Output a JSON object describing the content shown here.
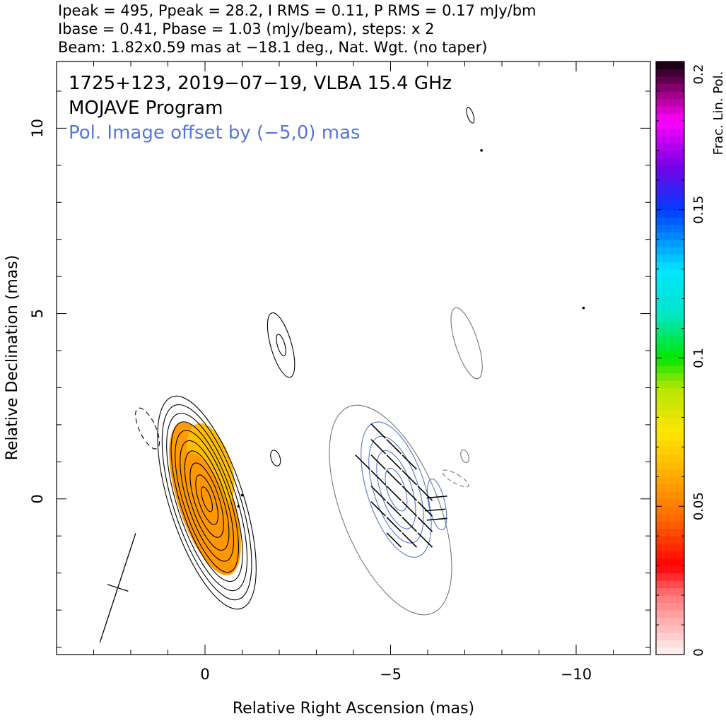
{
  "header": {
    "line1": "Ipeak = 495, Ppeak = 28.2, I RMS = 0.11, P RMS = 0.17 mJy/bm",
    "line2": "Ibase = 0.41, Pbase = 1.03 (mJy/beam), steps: x 2",
    "line3": "Beam: 1.82x0.59 mas at −18.1 deg., Nat. Wgt. (no taper)"
  },
  "chart_data": {
    "type": "contour",
    "source_title": "1725+123, 2019−07−19, VLBA 15.4 GHz",
    "program": "MOJAVE Program",
    "offset_note": "Pol. Image offset by (−5,0) mas",
    "xlabel": "Relative Right Ascension (mas)",
    "ylabel": "Relative Declination (mas)",
    "xlim": [
      4,
      -12
    ],
    "ylim": [
      -4.2,
      11.8
    ],
    "x_ticks": [
      {
        "value": 0,
        "label": "0"
      },
      {
        "value": -5,
        "label": "−5"
      },
      {
        "value": -10,
        "label": "−10"
      }
    ],
    "y_ticks": [
      {
        "value": 0,
        "label": "0"
      },
      {
        "value": 5,
        "label": "5"
      },
      {
        "value": 10,
        "label": "10"
      }
    ],
    "colorbar": {
      "label": "Frac. Lin. Pol.",
      "range": [
        0,
        0.2
      ],
      "ticks": [
        {
          "value": 0,
          "label": "0"
        },
        {
          "value": 0.05,
          "label": "0.05"
        },
        {
          "value": 0.1,
          "label": "0.1"
        },
        {
          "value": 0.15,
          "label": "0.15"
        },
        {
          "value": 0.2,
          "label": "0.2"
        }
      ]
    },
    "stokes_i": {
      "center": [
        0,
        0
      ],
      "position_angle_deg": -18,
      "contours": [
        {
          "semi_major": 3.0,
          "semi_minor": 1.0
        },
        {
          "semi_major": 2.75,
          "semi_minor": 0.9
        },
        {
          "semi_major": 2.5,
          "semi_minor": 0.8
        },
        {
          "semi_major": 2.25,
          "semi_minor": 0.7
        },
        {
          "semi_major": 2.0,
          "semi_minor": 0.62
        },
        {
          "semi_major": 1.7,
          "semi_minor": 0.52
        },
        {
          "semi_major": 1.4,
          "semi_minor": 0.43
        },
        {
          "semi_major": 1.05,
          "semi_minor": 0.33
        },
        {
          "semi_major": 0.7,
          "semi_minor": 0.22
        },
        {
          "semi_major": 0.35,
          "semi_minor": 0.11
        }
      ],
      "fracpol_fill": {
        "semi_major": 2.15,
        "semi_minor": 0.74,
        "fracpol": 0.055
      },
      "jet_component": {
        "center": [
          -2.05,
          4.15
        ],
        "position_angle_deg": -16,
        "contours": [
          {
            "semi_major": 0.9,
            "semi_minor": 0.28
          },
          {
            "semi_major": 0.3,
            "semi_minor": 0.1
          }
        ]
      },
      "negative_contour": {
        "center": [
          1.55,
          1.9
        ],
        "position_angle_deg": -25,
        "semi_major": 0.6,
        "semi_minor": 0.22
      },
      "small_islands": [
        {
          "center": [
            -1.9,
            1.1
          ],
          "semi_major": 0.22,
          "semi_minor": 0.12
        },
        {
          "center": [
            -7.15,
            10.35
          ],
          "semi_major": 0.22,
          "semi_minor": 0.08
        }
      ],
      "dots": [
        [
          -0.9,
          -0.2
        ],
        [
          -1.0,
          0.1
        ],
        [
          -7.45,
          9.4
        ],
        [
          -10.2,
          5.15
        ]
      ]
    },
    "polarization_image": {
      "offset": [
        -5,
        0
      ],
      "i_outline": {
        "center": [
          -5,
          -0.3
        ],
        "position_angle_deg": -22,
        "semi_major": 3.0,
        "semi_minor": 1.3
      },
      "i_outline_jet": {
        "center": [
          -7.05,
          4.2
        ],
        "position_angle_deg": -18,
        "semi_major": 1.0,
        "semi_minor": 0.3
      },
      "p_contours": [
        {
          "center": [
            -5.15,
            0.25
          ],
          "position_angle_deg": -18,
          "semi_major": 1.9,
          "semi_minor": 0.78
        },
        {
          "center": [
            -5.15,
            0.25
          ],
          "position_angle_deg": -18,
          "semi_major": 1.5,
          "semi_minor": 0.6
        },
        {
          "center": [
            -5.15,
            0.25
          ],
          "position_angle_deg": -18,
          "semi_major": 1.1,
          "semi_minor": 0.42
        },
        {
          "center": [
            -5.15,
            0.25
          ],
          "position_angle_deg": -18,
          "semi_major": 0.6,
          "semi_minor": 0.24
        },
        {
          "center": [
            -6.25,
            -0.15
          ],
          "position_angle_deg": -12,
          "semi_major": 0.7,
          "semi_minor": 0.22
        }
      ],
      "evpa_deg": 45,
      "evpa_outer_deg": -85
    },
    "beam": {
      "center": [
        2.35,
        -2.4
      ],
      "major": 1.82,
      "minor": 0.59,
      "position_angle_deg": -18.1
    }
  }
}
